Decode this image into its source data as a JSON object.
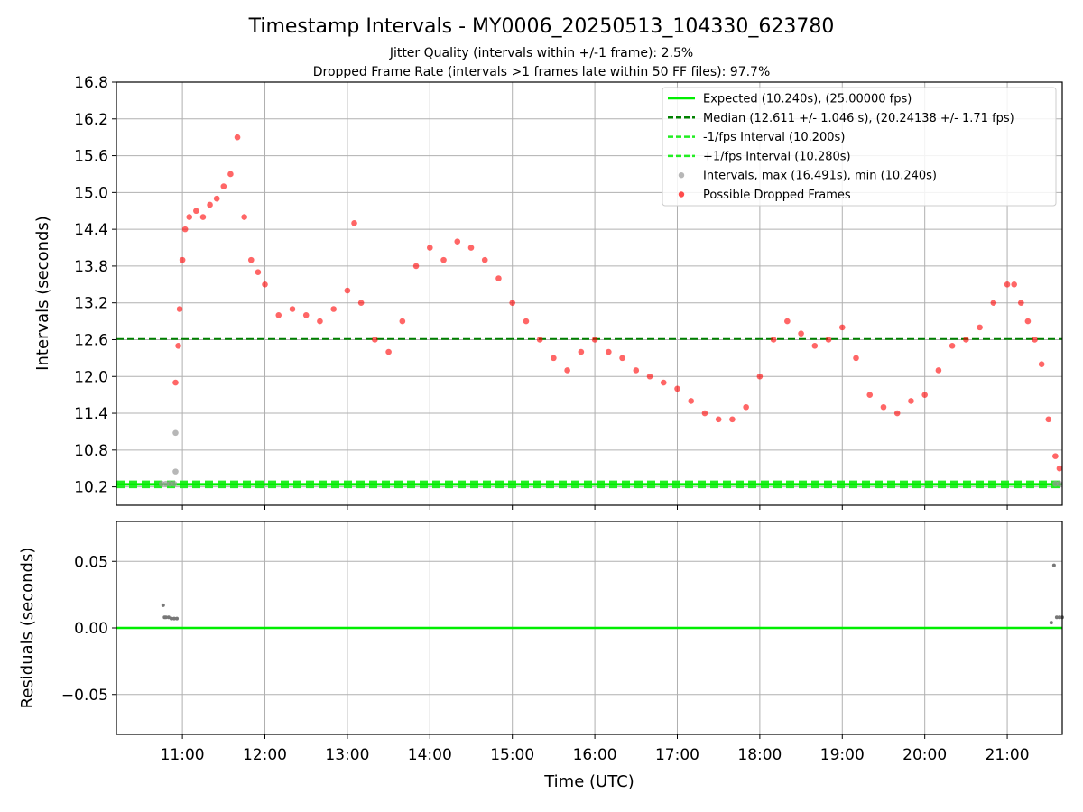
{
  "figure": {
    "title": "Timestamp Intervals - MY0006_20250513_104330_623780",
    "subtitle_1": "Jitter Quality (intervals within +/-1 frame): 2.5%",
    "subtitle_2": "Dropped Frame Rate (intervals >1 frames late within 50 FF files): 97.7%"
  },
  "colors": {
    "expected": "#00ee00",
    "median": "#008000",
    "interval_bound": "#22ee22",
    "dropped": "#ff0000",
    "normal": "#999999",
    "grid": "#b0b0b0"
  },
  "chart_data": [
    {
      "type": "scatter",
      "ylabel": "Intervals (seconds)",
      "ylim": [
        9.9,
        16.8
      ],
      "yticks": [
        "10.2",
        "10.8",
        "11.4",
        "12.0",
        "12.6",
        "13.2",
        "13.8",
        "14.4",
        "15.0",
        "15.6",
        "16.2",
        "16.8"
      ],
      "xlim": [
        "10:12",
        "21:40"
      ],
      "grid": true,
      "legend_position": "top-right",
      "legend": [
        "Expected (10.240s), (25.00000 fps)",
        "Median (12.611 +/- 1.046 s), (20.24138 +/- 1.71 fps)",
        "-1/fps Interval (10.200s)",
        "+1/fps Interval (10.280s)",
        "Intervals, max (16.491s), min (10.240s)",
        "Possible Dropped Frames"
      ],
      "lines": [
        {
          "name": "Expected",
          "y": 10.24,
          "style": "solid"
        },
        {
          "name": "Median",
          "y": 12.611,
          "style": "dashed"
        },
        {
          "name": "-1/fps Interval",
          "y": 10.2,
          "style": "dashed"
        },
        {
          "name": "+1/fps Interval",
          "y": 10.28,
          "style": "dashed"
        }
      ],
      "series": [
        {
          "name": "Possible Dropped Frames",
          "x": [
            "10:55",
            "10:57",
            "10:58",
            "11:00",
            "11:02",
            "11:05",
            "11:10",
            "11:15",
            "11:20",
            "11:25",
            "11:30",
            "11:35",
            "11:40",
            "11:45",
            "11:50",
            "11:55",
            "12:00",
            "12:10",
            "12:20",
            "12:30",
            "12:40",
            "12:50",
            "13:00",
            "13:05",
            "13:10",
            "13:20",
            "13:30",
            "13:40",
            "13:50",
            "14:00",
            "14:10",
            "14:20",
            "14:30",
            "14:40",
            "14:50",
            "15:00",
            "15:10",
            "15:20",
            "15:30",
            "15:40",
            "15:50",
            "16:00",
            "16:10",
            "16:20",
            "16:30",
            "16:40",
            "16:50",
            "17:00",
            "17:10",
            "17:20",
            "17:30",
            "17:40",
            "17:50",
            "18:00",
            "18:10",
            "18:20",
            "18:30",
            "18:40",
            "18:50",
            "19:00",
            "19:10",
            "19:20",
            "19:30",
            "19:40",
            "19:50",
            "20:00",
            "20:10",
            "20:20",
            "20:30",
            "20:40",
            "20:50",
            "21:00",
            "21:05",
            "21:10",
            "21:15",
            "21:20",
            "21:25",
            "21:30",
            "21:35",
            "21:38"
          ],
          "y": [
            11.9,
            12.5,
            13.1,
            13.9,
            14.4,
            14.6,
            14.7,
            14.6,
            14.8,
            14.9,
            15.1,
            15.3,
            15.9,
            14.6,
            13.9,
            13.7,
            13.5,
            13.0,
            13.1,
            13.0,
            12.9,
            13.1,
            13.4,
            14.5,
            13.2,
            12.6,
            12.4,
            12.9,
            13.8,
            14.1,
            13.9,
            14.2,
            14.1,
            13.9,
            13.6,
            13.2,
            12.9,
            12.6,
            12.3,
            12.1,
            12.4,
            12.6,
            12.4,
            12.3,
            12.1,
            12.0,
            11.9,
            11.8,
            11.6,
            11.4,
            11.3,
            11.3,
            11.5,
            12.0,
            12.6,
            12.9,
            12.7,
            12.5,
            12.6,
            12.8,
            12.3,
            11.7,
            11.5,
            11.4,
            11.6,
            11.7,
            12.1,
            12.5,
            12.6,
            12.8,
            13.2,
            13.5,
            13.5,
            13.2,
            12.9,
            12.6,
            12.2,
            11.3,
            10.7,
            10.5
          ]
        },
        {
          "name": "Intervals, max (16.491s), min (10.240s)",
          "x": [
            "10:45",
            "10:48",
            "10:51",
            "10:54",
            "10:55",
            "10:55",
            "21:35",
            "21:38"
          ],
          "y": [
            10.25,
            10.25,
            10.25,
            10.25,
            10.45,
            11.08,
            10.25,
            10.25
          ]
        }
      ]
    },
    {
      "type": "scatter",
      "ylabel": "Residuals (seconds)",
      "xlabel": "Time (UTC)",
      "ylim": [
        -0.08,
        0.08
      ],
      "yticks": [
        "−0.05",
        "0.00",
        "0.05"
      ],
      "xticks": [
        "11:00",
        "12:00",
        "13:00",
        "14:00",
        "15:00",
        "16:00",
        "17:00",
        "18:00",
        "19:00",
        "20:00",
        "21:00"
      ],
      "grid": true,
      "lines": [
        {
          "name": "zero",
          "y": 0.0,
          "style": "solid"
        }
      ],
      "series": [
        {
          "name": "Residuals",
          "x": [
            "10:46",
            "10:47",
            "10:48",
            "10:50",
            "10:52",
            "10:54",
            "10:56",
            "21:32",
            "21:34",
            "21:36",
            "21:38",
            "21:40"
          ],
          "y": [
            0.017,
            0.008,
            0.008,
            0.008,
            0.007,
            0.007,
            0.007,
            0.004,
            0.047,
            0.008,
            0.008,
            0.008
          ]
        }
      ]
    }
  ]
}
